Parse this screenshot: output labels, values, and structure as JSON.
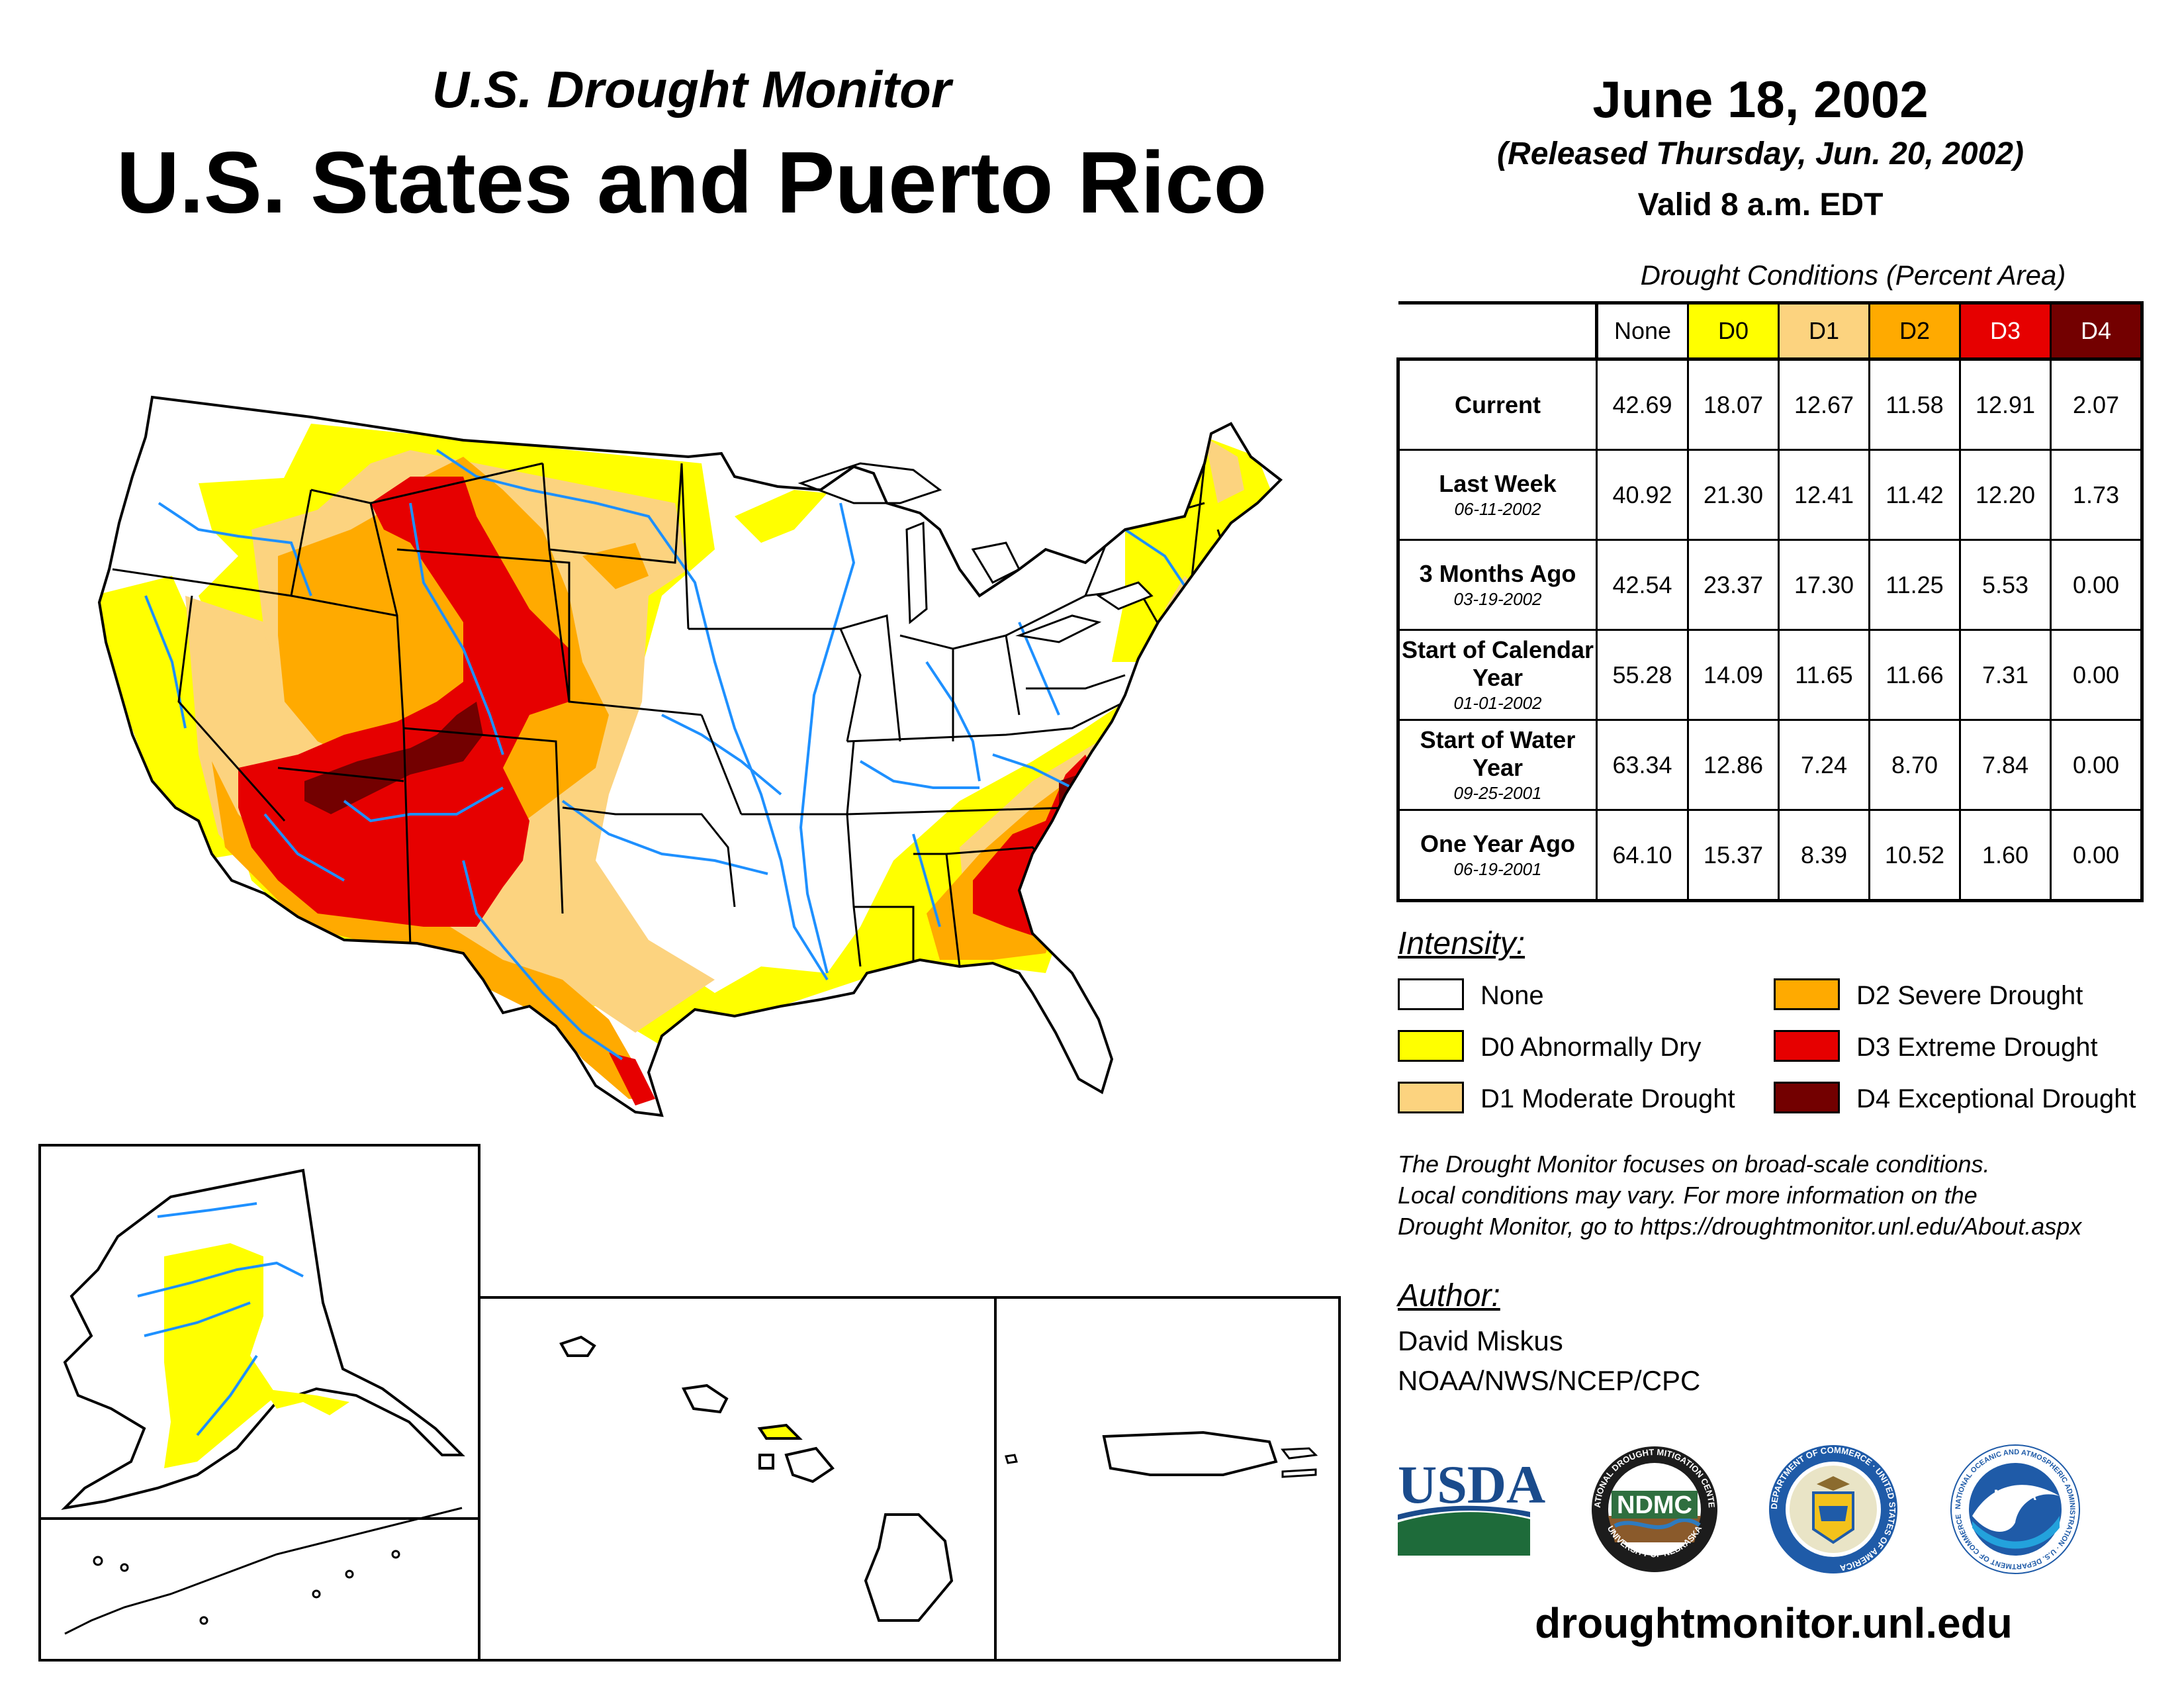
{
  "header": {
    "subtitle": "U.S. Drought Monitor",
    "title": "U.S. States and Puerto Rico",
    "date": "June 18, 2002",
    "released": "(Released Thursday, Jun. 20, 2002)",
    "valid": "Valid 8 a.m. EDT"
  },
  "table": {
    "title": "Drought Conditions (Percent Area)",
    "columns": [
      "None",
      "D0",
      "D1",
      "D2",
      "D3",
      "D4"
    ],
    "rows": [
      {
        "label": "Current",
        "date": "",
        "values": [
          "42.69",
          "18.07",
          "12.67",
          "11.58",
          "12.91",
          "2.07"
        ]
      },
      {
        "label": "Last Week",
        "date": "06-11-2002",
        "values": [
          "40.92",
          "21.30",
          "12.41",
          "11.42",
          "12.20",
          "1.73"
        ]
      },
      {
        "label": "3 Months Ago",
        "date": "03-19-2002",
        "values": [
          "42.54",
          "23.37",
          "17.30",
          "11.25",
          "5.53",
          "0.00"
        ]
      },
      {
        "label": "Start of Calendar Year",
        "date": "01-01-2002",
        "values": [
          "55.28",
          "14.09",
          "11.65",
          "11.66",
          "7.31",
          "0.00"
        ]
      },
      {
        "label": "Start of Water Year",
        "date": "09-25-2001",
        "values": [
          "63.34",
          "12.86",
          "7.24",
          "8.70",
          "7.84",
          "0.00"
        ]
      },
      {
        "label": "One Year Ago",
        "date": "06-19-2001",
        "values": [
          "64.10",
          "15.37",
          "8.39",
          "10.52",
          "1.60",
          "0.00"
        ]
      }
    ]
  },
  "legend": {
    "heading": "Intensity:",
    "items": [
      {
        "label": "None",
        "color": "#ffffff"
      },
      {
        "label": "D0 Abnormally Dry",
        "color": "#ffff00"
      },
      {
        "label": "D1 Moderate Drought",
        "color": "#fcd37f"
      },
      {
        "label": "D2 Severe Drought",
        "color": "#ffaa00"
      },
      {
        "label": "D3 Extreme Drought",
        "color": "#e60000"
      },
      {
        "label": "D4 Exceptional Drought",
        "color": "#730000"
      }
    ]
  },
  "note": {
    "line1": "The Drought Monitor focuses on broad-scale conditions.",
    "line2": "Local conditions may vary. For more information on the",
    "line3": "Drought Monitor, go to https://droughtmonitor.unl.edu/About.aspx"
  },
  "author": {
    "heading": "Author:",
    "name": "David Miskus",
    "org": "NOAA/NWS/NCEP/CPC"
  },
  "logos": {
    "usda": "USDA",
    "ndmc": "NDMC",
    "ndmc_ring_top": "NATIONAL DROUGHT MITIGATION CENTER",
    "ndmc_ring_bottom": "UNIVERSITY OF NEBRASKA",
    "doc_ring": "DEPARTMENT OF COMMERCE · UNITED STATES OF AMERICA",
    "noaa": "NOAA",
    "noaa_ring": "NATIONAL OCEANIC AND ATMOSPHERIC ADMINISTRATION · U.S. DEPARTMENT OF COMMERCE"
  },
  "footer": {
    "url": "droughtmonitor.unl.edu"
  },
  "colors": {
    "d0": "#ffff00",
    "d1": "#fcd37f",
    "d2": "#ffaa00",
    "d3": "#e60000",
    "d4": "#730000",
    "river": "#1e90ff",
    "usda_blue": "#1a4b8c",
    "usda_green": "#1e6b3a"
  }
}
